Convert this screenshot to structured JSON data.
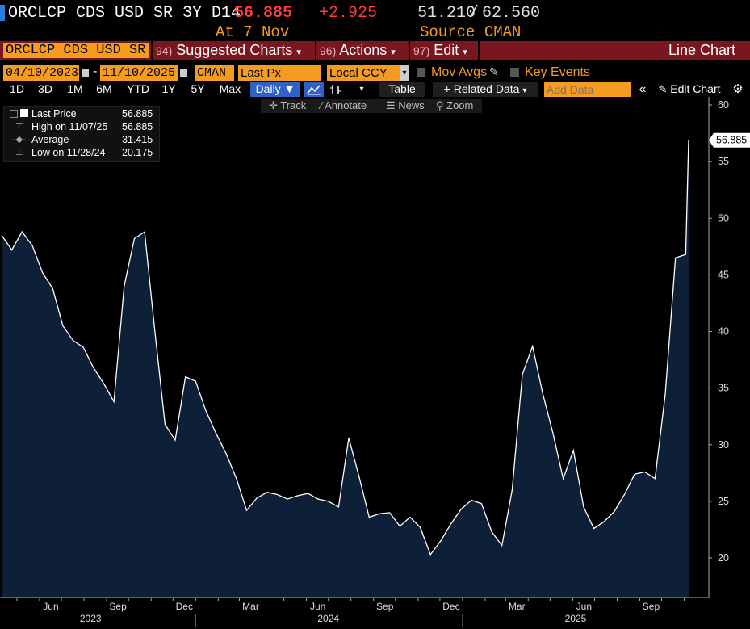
{
  "header": {
    "ticker": "ORCLCP CDS USD SR 3Y D14",
    "last": "56.885",
    "change": "+2.925",
    "range_low": "51.210",
    "range_sep": "/",
    "range_high": "62.560",
    "as_of": "At 7 Nov",
    "source": "Source CMAN"
  },
  "toolbar": {
    "security": "ORCLCP CDS USD SR",
    "suggested_num": "94)",
    "suggested": "Suggested Charts",
    "actions_num": "96)",
    "actions": "Actions",
    "edit_num": "97)",
    "edit": "Edit",
    "chart_type": "Line Chart",
    "dropdown_arrow": "▾"
  },
  "fields": {
    "start_date": "04/10/2023",
    "dash": "-",
    "end_date": "11/10/2025",
    "source": "CMAN",
    "field": "Last Px",
    "currency": "Local CCY",
    "mov_avgs": "Mov Avgs",
    "key_events": "Key Events"
  },
  "periods": [
    "1D",
    "3D",
    "1M",
    "6M",
    "YTD",
    "1Y",
    "5Y",
    "Max"
  ],
  "controls": {
    "frequency": "Daily ▼",
    "table": "Table",
    "related": "+ Related Data",
    "add_data_placeholder": "Add Data",
    "edit_chart": "Edit Chart"
  },
  "tools": {
    "track": "Track",
    "annotate": "Annotate",
    "news": "News",
    "zoom": "Zoom"
  },
  "legend": {
    "last_label": "Last Price",
    "last_value": "56.885",
    "high_label": "High on 11/07/25",
    "high_value": "56.885",
    "avg_label": "Average",
    "avg_value": "31.415",
    "low_label": "Low on 11/28/24",
    "low_value": "20.175"
  },
  "colors": {
    "accent_orange": "#f59b1f",
    "bar_red": "#7a1620",
    "last_red": "#ff3b3b",
    "area_fill": "#0e1f38",
    "line": "#ffffff"
  },
  "chart_data": {
    "type": "area",
    "title": "ORCLCP CDS USD SR 3Y D14",
    "ylabel": "",
    "xlabel": "",
    "ylim": [
      17,
      60
    ],
    "yticks": [
      20,
      25,
      30,
      35,
      40,
      45,
      50,
      55,
      60
    ],
    "last_value_label": "56.885",
    "x_month_labels": [
      "Jun",
      "Sep",
      "Dec",
      "Mar",
      "Jun",
      "Sep",
      "Dec",
      "Mar",
      "Jun",
      "Sep"
    ],
    "x_year_labels": [
      "2023",
      "2024",
      "2025"
    ],
    "x": [
      "2023-04-10",
      "2023-04-24",
      "2023-05-08",
      "2023-05-22",
      "2023-06-05",
      "2023-06-19",
      "2023-07-03",
      "2023-07-17",
      "2023-07-31",
      "2023-08-14",
      "2023-08-28",
      "2023-09-11",
      "2023-09-25",
      "2023-10-09",
      "2023-10-23",
      "2023-11-06",
      "2023-11-20",
      "2023-12-04",
      "2023-12-18",
      "2024-01-01",
      "2024-01-15",
      "2024-01-29",
      "2024-02-12",
      "2024-02-26",
      "2024-03-11",
      "2024-03-25",
      "2024-04-08",
      "2024-04-22",
      "2024-05-06",
      "2024-05-20",
      "2024-06-03",
      "2024-06-17",
      "2024-07-01",
      "2024-07-15",
      "2024-07-29",
      "2024-08-12",
      "2024-08-26",
      "2024-09-09",
      "2024-09-23",
      "2024-10-07",
      "2024-10-21",
      "2024-11-04",
      "2024-11-18",
      "2024-12-02",
      "2024-12-16",
      "2024-12-30",
      "2025-01-13",
      "2025-01-27",
      "2025-02-10",
      "2025-02-24",
      "2025-03-10",
      "2025-03-24",
      "2025-04-07",
      "2025-04-21",
      "2025-05-05",
      "2025-05-19",
      "2025-06-02",
      "2025-06-16",
      "2025-06-30",
      "2025-07-14",
      "2025-07-28",
      "2025-08-11",
      "2025-08-25",
      "2025-09-08",
      "2025-09-22",
      "2025-10-06",
      "2025-10-20",
      "2025-11-03",
      "2025-11-07"
    ],
    "series": [
      {
        "name": "Last Price",
        "values": [
          48.5,
          47.2,
          48.8,
          47.6,
          45.2,
          43.8,
          40.5,
          39.2,
          38.6,
          36.8,
          35.4,
          33.8,
          44.0,
          48.2,
          48.8,
          40.1,
          31.8,
          30.4,
          36.0,
          35.6,
          33.0,
          31.0,
          29.2,
          27.0,
          24.2,
          25.3,
          25.8,
          25.6,
          25.2,
          25.5,
          25.7,
          25.2,
          25.0,
          24.5,
          30.6,
          27.2,
          23.6,
          23.9,
          24.0,
          22.8,
          23.6,
          22.7,
          20.3,
          21.5,
          23.0,
          24.3,
          25.1,
          24.8,
          22.3,
          21.1,
          26.0,
          36.2,
          38.7,
          34.5,
          31.0,
          27.0,
          29.5,
          24.5,
          22.6,
          23.2,
          24.1,
          25.6,
          27.4,
          27.6,
          27.0,
          34.5,
          46.5,
          46.8,
          56.885
        ]
      }
    ]
  }
}
